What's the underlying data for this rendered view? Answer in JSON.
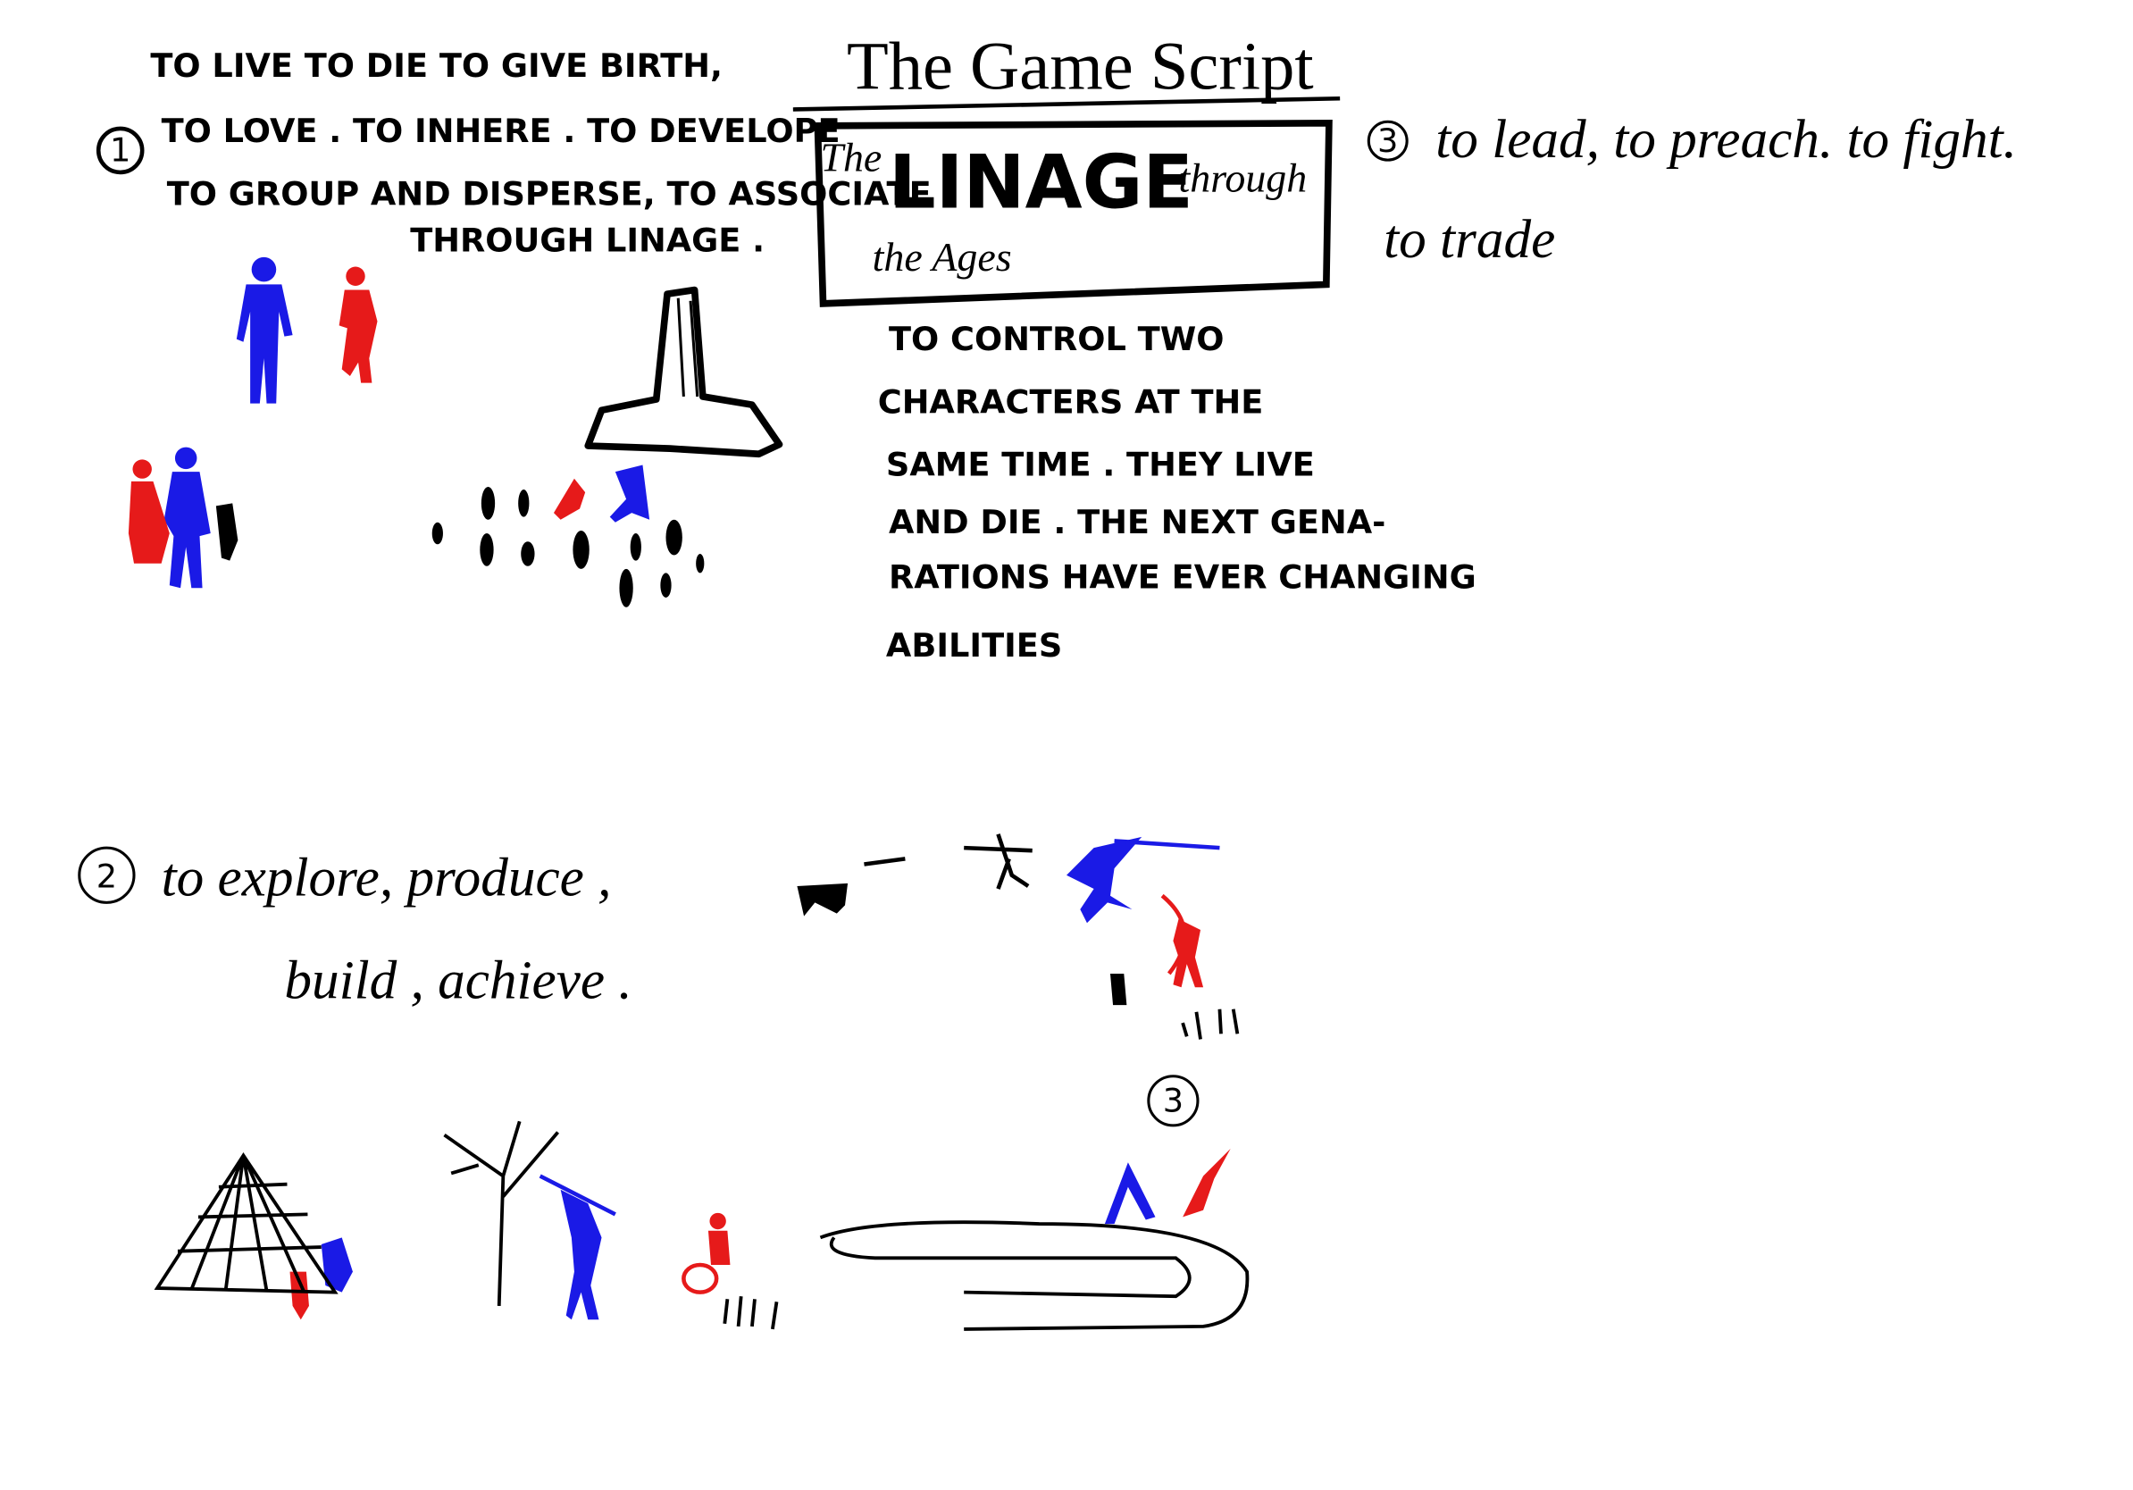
{
  "title": "The Game Script",
  "logo": {
    "the": "The",
    "main": "LINAGE",
    "through": "through",
    "ages": "the Ages"
  },
  "section1": {
    "number": "1",
    "lines": [
      "TO LIVE TO DIE TO GIVE BIRTH,",
      "TO LOVE . TO INHERE . TO DEVELOPE",
      "TO GROUP AND DISPERSE, TO ASSOCIATE",
      "THROUGH LINAGE ."
    ]
  },
  "description": {
    "lines": [
      "TO CONTROL TWO",
      "CHARACTERS AT THE",
      "SAME TIME . THEY LIVE",
      "AND DIE . THE NEXT GENA-",
      "RATIONS HAVE EVER CHANGING",
      "ABILITIES"
    ]
  },
  "section2": {
    "number": "2",
    "lines": [
      "to explore, produce ,",
      "build , achieve ."
    ]
  },
  "section3": {
    "number": "3",
    "lines": [
      "to lead, to preach. to fight.",
      "to trade"
    ]
  },
  "marker": "3"
}
